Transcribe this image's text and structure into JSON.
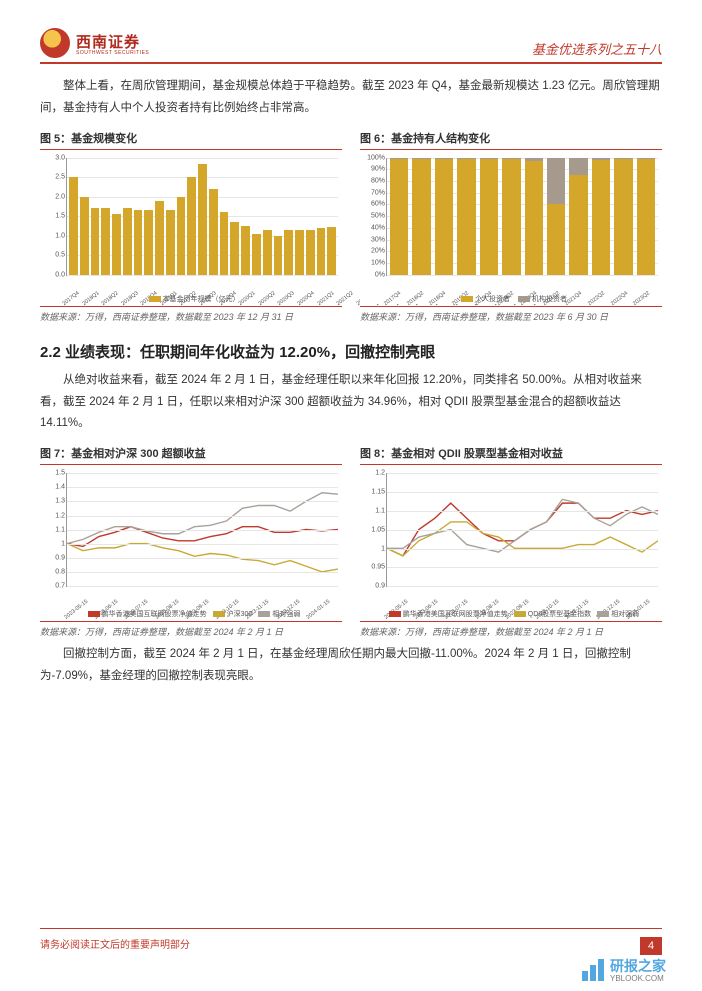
{
  "header": {
    "logo_text": "西南证券",
    "logo_sub": "SOUTHWEST SECURITIES",
    "series": "基金优选系列之五十八"
  },
  "intro_para": "整体上看，在周欣管理期间，基金规模总体趋于平稳趋势。截至 2023 年 Q4，基金最新规模达 1.23 亿元。周欣管理期间，基金持有人中个人投资者持有比例始终占非常高。",
  "row1": {
    "fig5": {
      "title": "图 5：基金规模变化",
      "type": "bar",
      "ylim": [
        0.0,
        3.0
      ],
      "ytick_step": 0.5,
      "categories": [
        "2017Q4",
        "2018Q1",
        "2018Q2",
        "2018Q3",
        "2018Q4",
        "2019Q1",
        "2019Q2",
        "2019Q3",
        "2019Q4",
        "2020Q1",
        "2020Q2",
        "2020Q3",
        "2020Q4",
        "2021Q1",
        "2021Q2",
        "2021Q3",
        "2021Q4",
        "2022Q1",
        "2022Q2",
        "2022Q3",
        "2022Q4",
        "2023Q1",
        "2023Q2",
        "2023Q3",
        "2023Q4"
      ],
      "values": [
        2.5,
        2.0,
        1.7,
        1.7,
        1.55,
        1.7,
        1.65,
        1.65,
        1.9,
        1.65,
        2.0,
        2.5,
        2.85,
        2.2,
        1.6,
        1.35,
        1.25,
        1.05,
        1.15,
        1.0,
        1.15,
        1.15,
        1.15,
        1.2,
        1.23
      ],
      "bar_color": "#d4a62a",
      "grid_color": "#e6e6e6",
      "legend_label": "本基金历年规模（亿元）",
      "source": "数据来源：万得，西南证券整理，数据截至 2023 年 12 月 31 日"
    },
    "fig6": {
      "title": "图 6：基金持有人结构变化",
      "type": "stacked_bar_pct",
      "ylim": [
        0,
        100
      ],
      "ytick_step": 10,
      "categories": [
        "2017Q4",
        "2018Q2",
        "2018Q4",
        "2019Q2",
        "2019Q4",
        "2020Q2",
        "2020Q4",
        "2021Q2",
        "2021Q4",
        "2022Q2",
        "2022Q4",
        "2023Q2"
      ],
      "bottom_pct": [
        99,
        99,
        99,
        99,
        99,
        99,
        97,
        60,
        85,
        98,
        99,
        99
      ],
      "colors": {
        "bottom": "#d4a62a",
        "top": "#a69a8c"
      },
      "legend": {
        "bottom": "个人投资者",
        "top": "机构投资者"
      },
      "source": "数据来源：万得，西南证券整理，数据截至 2023 年 6 月 30 日"
    }
  },
  "section_h": "2.2 业绩表现：任职期间年化收益为 12.20%，回撤控制亮眼",
  "para22": "从绝对收益来看，截至 2024 年 2 月 1 日，基金经理任职以来年化回报 12.20%，同类排名 50.00%。从相对收益来看，截至 2024 年 2 月 1 日，任职以来相对沪深 300 超额收益为 34.96%，相对 QDII 股票型基金混合的超额收益达 14.11%。",
  "row2": {
    "fig7": {
      "title": "图 7：基金相对沪深 300 超额收益",
      "type": "line",
      "ylim": [
        0.7,
        1.5
      ],
      "yticks": [
        0.7,
        0.8,
        0.9,
        1.0,
        1.1,
        1.2,
        1.3,
        1.4,
        1.5
      ],
      "x_labels": [
        "2023-05-15",
        "2023-06-15",
        "2023-07-15",
        "2023-08-15",
        "2023-09-15",
        "2023-10-15",
        "2023-11-15",
        "2023-12-15",
        "2024-01-15"
      ],
      "series": [
        {
          "name": "鹏华香港美国互联网股票净值走势",
          "color": "#c0392b",
          "w": 1.4,
          "pts": [
            1.0,
            0.98,
            1.05,
            1.08,
            1.12,
            1.08,
            1.04,
            1.02,
            1.02,
            1.05,
            1.07,
            1.12,
            1.12,
            1.08,
            1.08,
            1.1,
            1.09,
            1.1
          ]
        },
        {
          "name": "沪深300",
          "color": "#c9a935",
          "w": 1.4,
          "pts": [
            1.0,
            0.95,
            0.97,
            0.97,
            1.0,
            1.0,
            0.97,
            0.95,
            0.91,
            0.93,
            0.92,
            0.89,
            0.88,
            0.85,
            0.88,
            0.84,
            0.8,
            0.82
          ]
        },
        {
          "name": "相对强弱",
          "color": "#a8a29b",
          "w": 1.4,
          "pts": [
            1.0,
            1.03,
            1.08,
            1.12,
            1.12,
            1.09,
            1.07,
            1.07,
            1.12,
            1.13,
            1.16,
            1.25,
            1.27,
            1.27,
            1.23,
            1.3,
            1.36,
            1.35
          ]
        }
      ],
      "source": "数据来源：万得，西南证券整理，数据截至 2024 年 2 月 1 日"
    },
    "fig8": {
      "title": "图 8：基金相对 QDII 股票型基金相对收益",
      "type": "line",
      "ylim": [
        0.9,
        1.2
      ],
      "yticks": [
        0.9,
        0.95,
        1.0,
        1.05,
        1.1,
        1.15,
        1.2
      ],
      "x_labels": [
        "2023-05-15",
        "2023-06-15",
        "2023-07-15",
        "2023-08-15",
        "2023-09-15",
        "2023-10-15",
        "2023-11-15",
        "2023-12-15",
        "2024-01-15"
      ],
      "series": [
        {
          "name": "鹏华香港美国互联网股票净值走势",
          "color": "#c0392b",
          "w": 1.4,
          "pts": [
            1.0,
            0.98,
            1.05,
            1.08,
            1.12,
            1.08,
            1.04,
            1.02,
            1.02,
            1.05,
            1.07,
            1.12,
            1.12,
            1.08,
            1.08,
            1.1,
            1.09,
            1.1
          ]
        },
        {
          "name": "QDII股票型基金指数",
          "color": "#c9a935",
          "w": 1.4,
          "pts": [
            1.0,
            0.98,
            1.02,
            1.04,
            1.07,
            1.07,
            1.04,
            1.03,
            1.0,
            1.0,
            1.0,
            1.0,
            1.01,
            1.01,
            1.03,
            1.01,
            0.99,
            1.02
          ]
        },
        {
          "name": "相对强弱",
          "color": "#a8a29b",
          "w": 1.4,
          "pts": [
            1.0,
            1.0,
            1.03,
            1.04,
            1.05,
            1.01,
            1.0,
            0.99,
            1.02,
            1.05,
            1.07,
            1.13,
            1.12,
            1.08,
            1.06,
            1.09,
            1.11,
            1.09
          ]
        }
      ],
      "source": "数据来源：万得，西南证券整理，数据截至 2024 年 2 月 1 日"
    }
  },
  "para_dd": "回撤控制方面，截至 2024 年 2 月 1 日，在基金经理周欣任期内最大回撤-11.00%。2024 年 2 月 1 日，回撤控制为-7.09%，基金经理的回撤控制表现亮眼。",
  "footer": {
    "disclaimer": "请务必阅读正文后的重要声明部分",
    "page": "4",
    "wm_main": "研报之家",
    "wm_sub": "YBLOOK.COM"
  },
  "colors": {
    "accent": "#c0392b",
    "gold": "#d4a62a",
    "grey": "#a8a29b"
  }
}
